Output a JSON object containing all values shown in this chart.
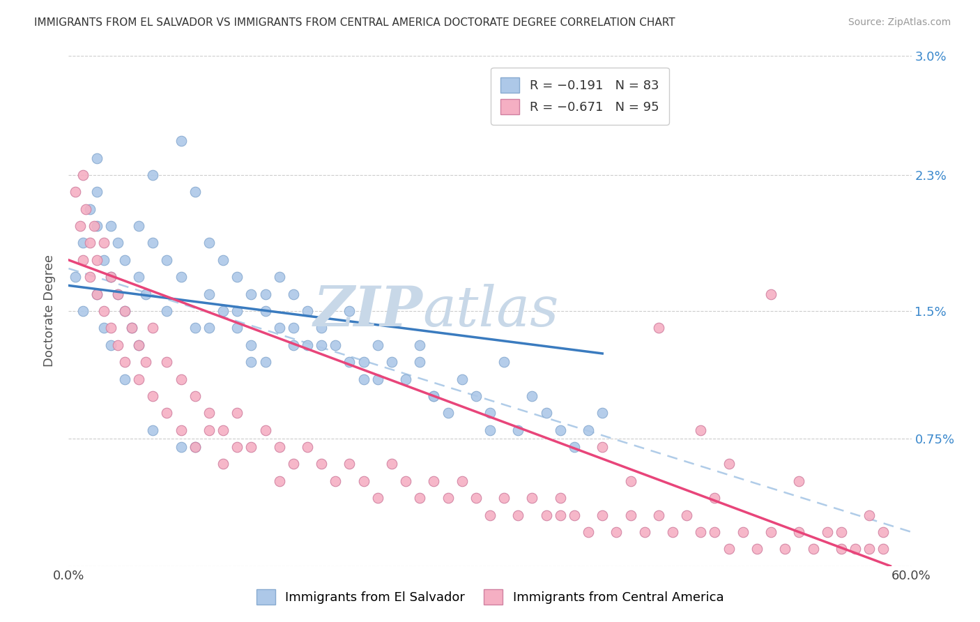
{
  "title": "IMMIGRANTS FROM EL SALVADOR VS IMMIGRANTS FROM CENTRAL AMERICA DOCTORATE DEGREE CORRELATION CHART",
  "source": "Source: ZipAtlas.com",
  "xlabel_blue": "Immigrants from El Salvador",
  "xlabel_pink": "Immigrants from Central America",
  "ylabel": "Doctorate Degree",
  "xlim": [
    0.0,
    0.6
  ],
  "ylim": [
    0.0,
    0.03
  ],
  "xticks": [
    0.0,
    0.1,
    0.2,
    0.3,
    0.4,
    0.5,
    0.6
  ],
  "xticklabels": [
    "0.0%",
    "",
    "",
    "",
    "",
    "",
    "60.0%"
  ],
  "yticks": [
    0.0,
    0.0075,
    0.015,
    0.023,
    0.03
  ],
  "yticklabels": [
    "",
    "0.75%",
    "1.5%",
    "2.3%",
    "3.0%"
  ],
  "legend_blue": "R = −0.191   N = 83",
  "legend_pink": "R = −0.671   N = 95",
  "blue_color": "#adc8e8",
  "pink_color": "#f5afc3",
  "blue_line_color": "#3a7bbf",
  "pink_line_color": "#e8457a",
  "dashed_line_color": "#b0cce8",
  "watermark_zip": "ZIP",
  "watermark_atlas": "atlas",
  "watermark_color": "#c8d8e8",
  "blue_scatter_x": [
    0.005,
    0.01,
    0.01,
    0.015,
    0.02,
    0.02,
    0.02,
    0.025,
    0.025,
    0.03,
    0.03,
    0.03,
    0.035,
    0.035,
    0.04,
    0.04,
    0.045,
    0.05,
    0.05,
    0.05,
    0.055,
    0.06,
    0.06,
    0.07,
    0.07,
    0.08,
    0.08,
    0.09,
    0.09,
    0.1,
    0.1,
    0.11,
    0.11,
    0.12,
    0.12,
    0.13,
    0.13,
    0.14,
    0.14,
    0.15,
    0.15,
    0.16,
    0.16,
    0.17,
    0.18,
    0.19,
    0.2,
    0.2,
    0.21,
    0.22,
    0.23,
    0.24,
    0.25,
    0.26,
    0.27,
    0.28,
    0.29,
    0.3,
    0.31,
    0.32,
    0.33,
    0.34,
    0.35,
    0.36,
    0.37,
    0.38,
    0.25,
    0.18,
    0.22,
    0.16,
    0.14,
    0.12,
    0.1,
    0.08,
    0.06,
    0.04,
    0.02,
    0.3,
    0.26,
    0.21,
    0.17,
    0.13,
    0.09
  ],
  "blue_scatter_y": [
    0.017,
    0.019,
    0.015,
    0.021,
    0.02,
    0.016,
    0.022,
    0.018,
    0.014,
    0.017,
    0.02,
    0.013,
    0.016,
    0.019,
    0.015,
    0.018,
    0.014,
    0.017,
    0.02,
    0.013,
    0.016,
    0.019,
    0.023,
    0.018,
    0.015,
    0.017,
    0.025,
    0.014,
    0.022,
    0.016,
    0.019,
    0.015,
    0.018,
    0.014,
    0.017,
    0.013,
    0.016,
    0.015,
    0.012,
    0.014,
    0.017,
    0.013,
    0.016,
    0.015,
    0.014,
    0.013,
    0.012,
    0.015,
    0.011,
    0.013,
    0.012,
    0.011,
    0.013,
    0.01,
    0.009,
    0.011,
    0.01,
    0.009,
    0.012,
    0.008,
    0.01,
    0.009,
    0.008,
    0.007,
    0.008,
    0.009,
    0.012,
    0.013,
    0.011,
    0.014,
    0.016,
    0.015,
    0.014,
    0.007,
    0.008,
    0.011,
    0.024,
    0.008,
    0.01,
    0.012,
    0.013,
    0.012,
    0.007
  ],
  "pink_scatter_x": [
    0.005,
    0.008,
    0.01,
    0.01,
    0.012,
    0.015,
    0.015,
    0.018,
    0.02,
    0.02,
    0.025,
    0.025,
    0.03,
    0.03,
    0.035,
    0.035,
    0.04,
    0.04,
    0.045,
    0.05,
    0.05,
    0.055,
    0.06,
    0.06,
    0.07,
    0.07,
    0.08,
    0.08,
    0.09,
    0.09,
    0.1,
    0.1,
    0.11,
    0.11,
    0.12,
    0.12,
    0.13,
    0.14,
    0.15,
    0.15,
    0.16,
    0.17,
    0.18,
    0.19,
    0.2,
    0.21,
    0.22,
    0.23,
    0.24,
    0.25,
    0.26,
    0.27,
    0.28,
    0.29,
    0.3,
    0.31,
    0.32,
    0.33,
    0.34,
    0.35,
    0.36,
    0.37,
    0.38,
    0.39,
    0.4,
    0.41,
    0.42,
    0.43,
    0.44,
    0.45,
    0.46,
    0.47,
    0.48,
    0.49,
    0.5,
    0.51,
    0.52,
    0.53,
    0.54,
    0.55,
    0.56,
    0.57,
    0.58,
    0.45,
    0.5,
    0.38,
    0.42,
    0.47,
    0.52,
    0.35,
    0.4,
    0.46,
    0.55,
    0.58,
    0.57
  ],
  "pink_scatter_y": [
    0.022,
    0.02,
    0.023,
    0.018,
    0.021,
    0.019,
    0.017,
    0.02,
    0.018,
    0.016,
    0.019,
    0.015,
    0.017,
    0.014,
    0.016,
    0.013,
    0.015,
    0.012,
    0.014,
    0.013,
    0.011,
    0.012,
    0.014,
    0.01,
    0.012,
    0.009,
    0.011,
    0.008,
    0.01,
    0.007,
    0.009,
    0.008,
    0.008,
    0.006,
    0.007,
    0.009,
    0.007,
    0.008,
    0.007,
    0.005,
    0.006,
    0.007,
    0.006,
    0.005,
    0.006,
    0.005,
    0.004,
    0.006,
    0.005,
    0.004,
    0.005,
    0.004,
    0.005,
    0.004,
    0.003,
    0.004,
    0.003,
    0.004,
    0.003,
    0.004,
    0.003,
    0.002,
    0.003,
    0.002,
    0.003,
    0.002,
    0.003,
    0.002,
    0.003,
    0.002,
    0.002,
    0.001,
    0.002,
    0.001,
    0.002,
    0.001,
    0.002,
    0.001,
    0.002,
    0.001,
    0.001,
    0.001,
    0.001,
    0.008,
    0.016,
    0.007,
    0.014,
    0.006,
    0.005,
    0.003,
    0.005,
    0.004,
    0.002,
    0.002,
    0.003
  ],
  "blue_line": {
    "x0": 0.0,
    "y0": 0.0165,
    "x1": 0.38,
    "y1": 0.0125
  },
  "pink_line": {
    "x0": 0.0,
    "y0": 0.018,
    "x1": 0.585,
    "y1": 0.0
  },
  "dashed_line": {
    "x0": 0.0,
    "y0": 0.0175,
    "x1": 0.6,
    "y1": 0.002
  }
}
